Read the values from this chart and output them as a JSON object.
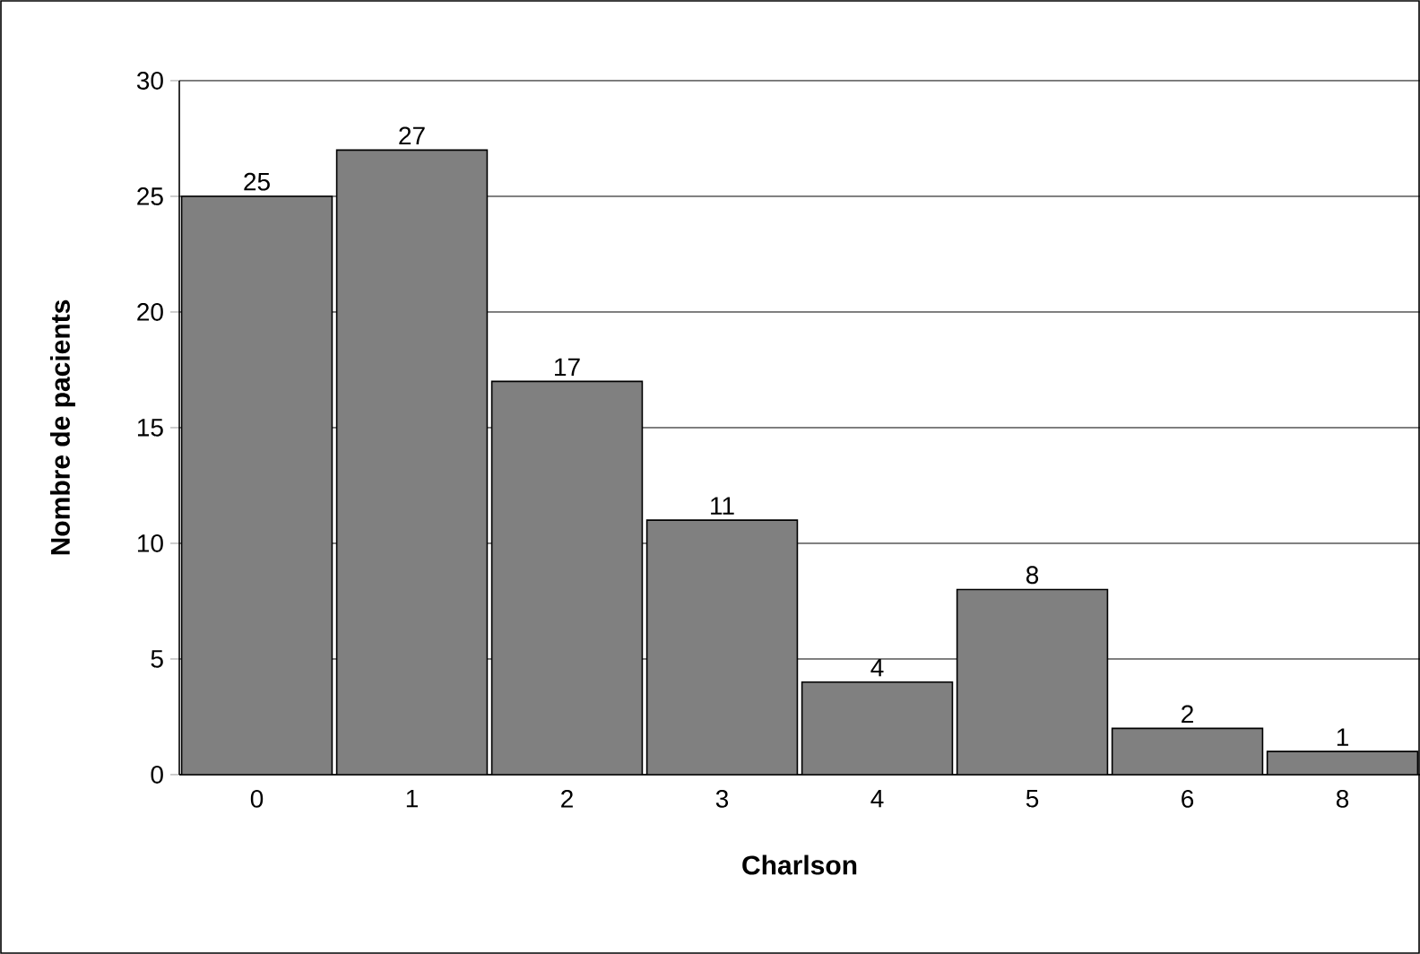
{
  "chart_data": {
    "type": "bar",
    "xlabel": "Charlson",
    "ylabel": "Nombre de pacients",
    "categories": [
      "0",
      "1",
      "2",
      "3",
      "4",
      "5",
      "6",
      "8"
    ],
    "values": [
      25,
      27,
      17,
      11,
      4,
      8,
      2,
      1
    ],
    "color": "#808080",
    "ylim": [
      0,
      30
    ],
    "yticks": [
      0,
      5,
      10,
      15,
      20,
      25,
      30
    ],
    "grid": "y",
    "data_labels": true
  }
}
